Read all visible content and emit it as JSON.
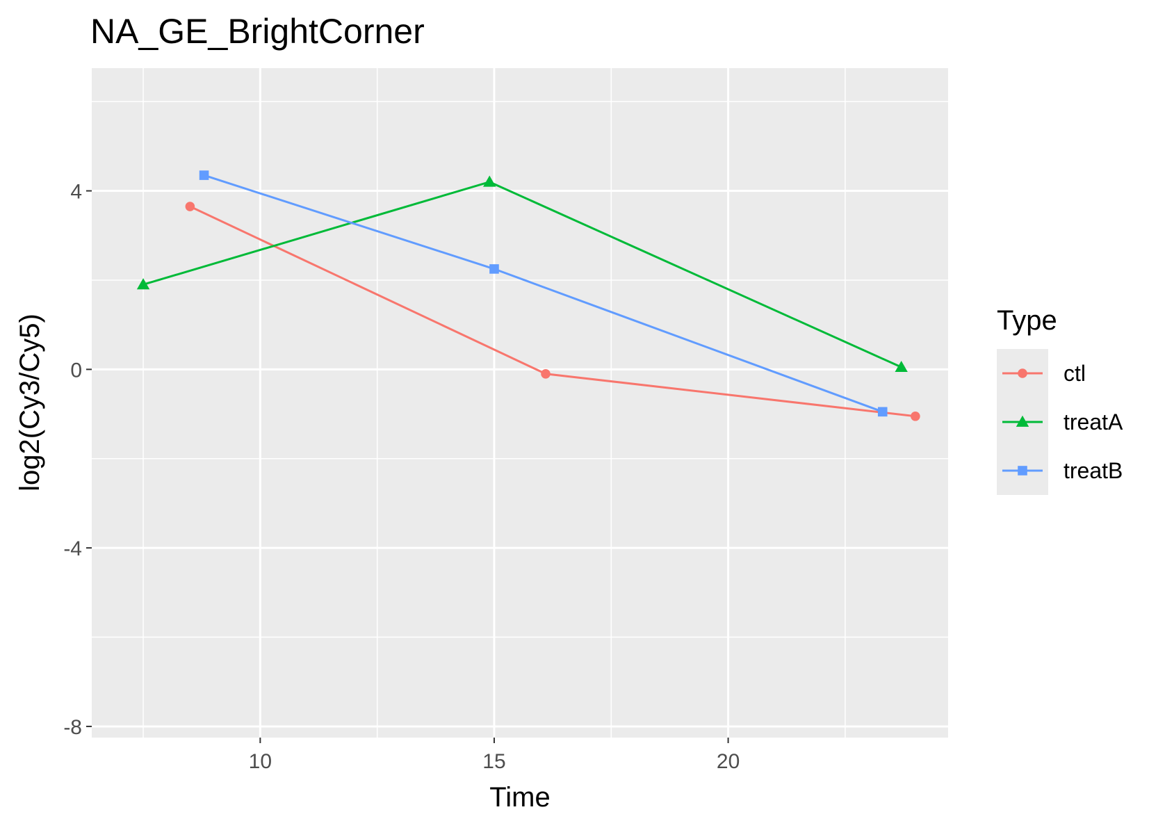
{
  "chart_data": {
    "type": "line",
    "title": "NA_GE_BrightCorner",
    "xlabel": "Time",
    "ylabel": "log2(Cy3/Cy5)",
    "xlim": [
      6.4,
      24.7
    ],
    "ylim": [
      -8.25,
      6.75
    ],
    "x_ticks": [
      10,
      15,
      20
    ],
    "x_minor": [
      7.5,
      12.5,
      17.5,
      22.5
    ],
    "x_tick_labels": [
      "10",
      "15",
      "20"
    ],
    "y_ticks": [
      -8,
      -4,
      0,
      4
    ],
    "y_minor": [
      -6,
      -2,
      2,
      6
    ],
    "y_tick_labels": [
      "-8",
      "-4",
      "0",
      "4"
    ],
    "grid": true,
    "legend": {
      "title": "Type",
      "position": "right"
    },
    "series": [
      {
        "name": "ctl",
        "color": "#F8766D",
        "shape": "circle",
        "points": [
          {
            "x": 8.5,
            "y": 3.65
          },
          {
            "x": 16.1,
            "y": -0.1
          },
          {
            "x": 24.0,
            "y": -1.05
          }
        ]
      },
      {
        "name": "treatA",
        "color": "#00BA38",
        "shape": "triangle",
        "points": [
          {
            "x": 7.5,
            "y": 1.9
          },
          {
            "x": 14.9,
            "y": 4.2
          },
          {
            "x": 23.7,
            "y": 0.05
          }
        ]
      },
      {
        "name": "treatB",
        "color": "#619CFF",
        "shape": "square",
        "points": [
          {
            "x": 8.8,
            "y": 4.35
          },
          {
            "x": 15.0,
            "y": 2.25
          },
          {
            "x": 23.3,
            "y": -0.95
          }
        ]
      }
    ]
  }
}
